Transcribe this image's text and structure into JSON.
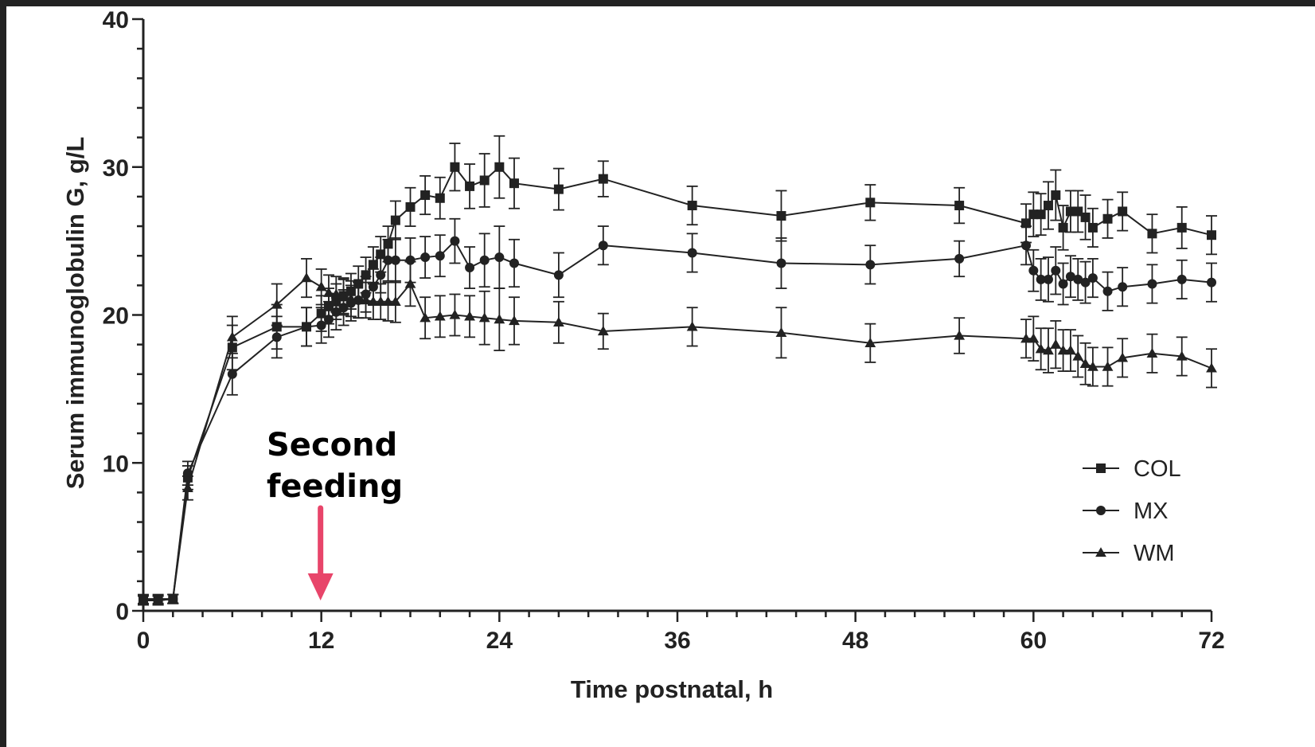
{
  "chart_data": {
    "type": "line",
    "title": "",
    "xlabel": "Time postnatal, h",
    "ylabel": "Serum immunoglobulin G, g/L",
    "xlim": [
      0,
      72
    ],
    "ylim": [
      0,
      40
    ],
    "x_ticks": [
      0,
      12,
      24,
      36,
      48,
      60,
      72
    ],
    "y_ticks": [
      0,
      10,
      20,
      30,
      40
    ],
    "grid": false,
    "legend_position": "bottom-right",
    "annotation": {
      "lines": [
        "Second",
        "feeding"
      ],
      "x": 12,
      "arrow_color": "#e8456a"
    },
    "series": [
      {
        "name": "COL",
        "marker": "square",
        "points": [
          [
            0,
            0.8,
            0.3
          ],
          [
            1,
            0.8,
            0.3
          ],
          [
            2,
            0.8,
            0.3
          ],
          [
            3,
            9,
            0.8
          ],
          [
            6,
            17.8,
            1.5
          ],
          [
            9,
            19.2,
            1.5
          ],
          [
            11,
            19.2,
            1.3
          ],
          [
            12,
            20.1,
            1.2
          ],
          [
            12.5,
            20.6,
            1.2
          ],
          [
            13,
            20.9,
            1.2
          ],
          [
            13.5,
            21.3,
            1.2
          ],
          [
            14,
            21.6,
            1.2
          ],
          [
            14.5,
            22.1,
            1.2
          ],
          [
            15,
            22.7,
            1.2
          ],
          [
            15.5,
            23.4,
            1.2
          ],
          [
            16,
            24.1,
            1.2
          ],
          [
            16.5,
            24.8,
            1.2
          ],
          [
            17,
            26.4,
            1.3
          ],
          [
            18,
            27.3,
            1.3
          ],
          [
            19,
            28.1,
            1.3
          ],
          [
            20,
            27.9,
            1.4
          ],
          [
            21,
            30,
            1.6
          ],
          [
            22,
            28.7,
            1.5
          ],
          [
            23,
            29.1,
            1.8
          ],
          [
            24,
            30,
            2.1
          ],
          [
            25,
            28.9,
            1.7
          ],
          [
            28,
            28.5,
            1.4
          ],
          [
            31,
            29.2,
            1.2
          ],
          [
            37,
            27.4,
            1.3
          ],
          [
            43,
            26.7,
            1.7
          ],
          [
            49,
            27.6,
            1.2
          ],
          [
            55,
            27.4,
            1.2
          ],
          [
            59.5,
            26.2,
            1.3
          ],
          [
            60,
            26.8,
            1.5
          ],
          [
            60.5,
            26.8,
            1.4
          ],
          [
            61,
            27.4,
            1.6
          ],
          [
            61.5,
            28.1,
            1.7
          ],
          [
            62,
            25.9,
            1.5
          ],
          [
            62.5,
            27,
            1.4
          ],
          [
            63,
            27,
            1.4
          ],
          [
            63.5,
            26.6,
            1.5
          ],
          [
            64,
            25.9,
            1.3
          ],
          [
            65,
            26.5,
            1.3
          ],
          [
            66,
            27,
            1.3
          ],
          [
            68,
            25.5,
            1.3
          ],
          [
            70,
            25.9,
            1.4
          ],
          [
            72,
            25.4,
            1.3
          ]
        ]
      },
      {
        "name": "MX",
        "marker": "circle",
        "points": [
          [
            0,
            0.7,
            0.3
          ],
          [
            1,
            0.7,
            0.3
          ],
          [
            2,
            0.8,
            0.3
          ],
          [
            3,
            9.3,
            0.8
          ],
          [
            6,
            16,
            1.4
          ],
          [
            9,
            18.5,
            1.4
          ],
          [
            11,
            19.2,
            1.3
          ],
          [
            12,
            19.3,
            1.2
          ],
          [
            12.5,
            19.7,
            1.2
          ],
          [
            13,
            20.2,
            1.2
          ],
          [
            13.5,
            20.5,
            1.2
          ],
          [
            14,
            20.8,
            1.2
          ],
          [
            14.5,
            21,
            1.2
          ],
          [
            15,
            21.4,
            1.2
          ],
          [
            15.5,
            21.9,
            1.2
          ],
          [
            16,
            22.7,
            1.2
          ],
          [
            16.5,
            23.7,
            1.4
          ],
          [
            17,
            23.7,
            1.5
          ],
          [
            18,
            23.7,
            1.5
          ],
          [
            19,
            23.9,
            1.4
          ],
          [
            20,
            24,
            1.4
          ],
          [
            21,
            25,
            1.5
          ],
          [
            22,
            23.2,
            1.4
          ],
          [
            23,
            23.7,
            1.8
          ],
          [
            24,
            23.9,
            2.1
          ],
          [
            25,
            23.5,
            1.6
          ],
          [
            28,
            22.7,
            1.5
          ],
          [
            31,
            24.7,
            1.3
          ],
          [
            37,
            24.2,
            1.3
          ],
          [
            43,
            23.5,
            1.7
          ],
          [
            49,
            23.4,
            1.3
          ],
          [
            55,
            23.8,
            1.2
          ],
          [
            59.5,
            24.7,
            1.3
          ],
          [
            60,
            23,
            1.4
          ],
          [
            60.5,
            22.4,
            1.4
          ],
          [
            61,
            22.4,
            1.5
          ],
          [
            61.5,
            23,
            1.6
          ],
          [
            62,
            22.1,
            1.4
          ],
          [
            62.5,
            22.6,
            1.4
          ],
          [
            63,
            22.4,
            1.4
          ],
          [
            63.5,
            22.2,
            1.4
          ],
          [
            64,
            22.5,
            1.3
          ],
          [
            65,
            21.6,
            1.3
          ],
          [
            66,
            21.9,
            1.3
          ],
          [
            68,
            22.1,
            1.3
          ],
          [
            70,
            22.4,
            1.3
          ],
          [
            72,
            22.2,
            1.3
          ]
        ]
      },
      {
        "name": "WM",
        "marker": "triangle",
        "points": [
          [
            0,
            0.7,
            0.3
          ],
          [
            1,
            0.7,
            0.3
          ],
          [
            2,
            0.8,
            0.3
          ],
          [
            3,
            8.3,
            0.8
          ],
          [
            6,
            18.5,
            1.4
          ],
          [
            9,
            20.7,
            1.4
          ],
          [
            11,
            22.5,
            1.3
          ],
          [
            12,
            21.9,
            1.2
          ],
          [
            12.5,
            21.5,
            1.2
          ],
          [
            13,
            21.4,
            1.2
          ],
          [
            13.5,
            21.2,
            1.2
          ],
          [
            14,
            21.1,
            1.2
          ],
          [
            14.5,
            21,
            1.2
          ],
          [
            15,
            21,
            1.2
          ],
          [
            15.5,
            20.9,
            1.2
          ],
          [
            16,
            20.9,
            1.2
          ],
          [
            16.5,
            20.9,
            1.3
          ],
          [
            17,
            20.9,
            1.4
          ],
          [
            18,
            22.1,
            1.5
          ],
          [
            19,
            19.8,
            1.4
          ],
          [
            20,
            19.9,
            1.4
          ],
          [
            21,
            20,
            1.4
          ],
          [
            22,
            19.9,
            1.4
          ],
          [
            23,
            19.8,
            1.8
          ],
          [
            24,
            19.7,
            2.1
          ],
          [
            25,
            19.6,
            1.6
          ],
          [
            28,
            19.5,
            1.4
          ],
          [
            31,
            18.9,
            1.2
          ],
          [
            37,
            19.2,
            1.3
          ],
          [
            43,
            18.8,
            1.7
          ],
          [
            49,
            18.1,
            1.3
          ],
          [
            55,
            18.6,
            1.2
          ],
          [
            59.5,
            18.4,
            1.3
          ],
          [
            60,
            18.4,
            1.5
          ],
          [
            60.5,
            17.7,
            1.4
          ],
          [
            61,
            17.6,
            1.5
          ],
          [
            61.5,
            18,
            1.6
          ],
          [
            62,
            17.6,
            1.4
          ],
          [
            62.5,
            17.6,
            1.4
          ],
          [
            63,
            17.2,
            1.4
          ],
          [
            63.5,
            16.7,
            1.4
          ],
          [
            64,
            16.5,
            1.3
          ],
          [
            65,
            16.5,
            1.3
          ],
          [
            66,
            17.1,
            1.3
          ],
          [
            68,
            17.4,
            1.3
          ],
          [
            70,
            17.2,
            1.3
          ],
          [
            72,
            16.4,
            1.3
          ]
        ]
      }
    ]
  }
}
